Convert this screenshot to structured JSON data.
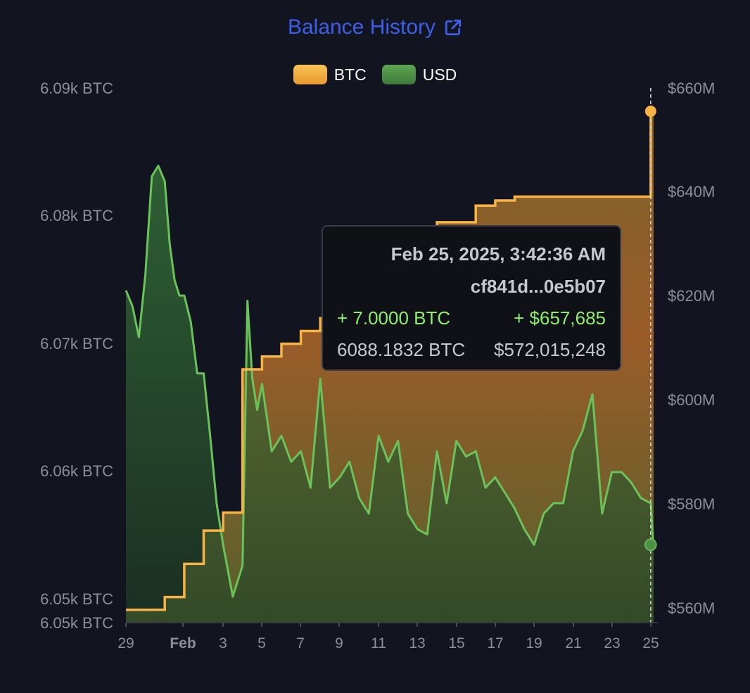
{
  "title": "Balance History",
  "legend": [
    {
      "label": "BTC",
      "color": "#f7b444"
    },
    {
      "label": "USD",
      "color": "#4e8f47"
    }
  ],
  "colors": {
    "btc_line": "#f7b444",
    "usd_line": "#6cc25a",
    "background": "#12151f"
  },
  "tooltip": {
    "date": "Feb 25, 2025, 3:42:36 AM",
    "hash": "cf841d...0e5b07",
    "delta_btc": "+ 7.0000 BTC",
    "delta_usd": "+ $657,685",
    "balance_btc": "6088.1832 BTC",
    "balance_usd": "$572,015,248"
  },
  "chart_data": {
    "type": "area",
    "title": "Balance History",
    "x_ticks": [
      "29",
      "Feb",
      "3",
      "5",
      "7",
      "9",
      "11",
      "13",
      "15",
      "17",
      "19",
      "21",
      "23",
      "25"
    ],
    "y_left_ticks": [
      "6.09k BTC",
      "6.08k BTC",
      "6.07k BTC",
      "6.06k BTC",
      "6.05k BTC",
      "6.05k BTC"
    ],
    "y_right_ticks": [
      "$660M",
      "$640M",
      "$620M",
      "$600M",
      "$580M",
      "$560M"
    ],
    "y_left_range": [
      6048.2,
      6090
    ],
    "y_right_range": [
      557,
      660
    ],
    "series": [
      {
        "name": "BTC",
        "axis": "left",
        "step": true,
        "x": [
          "2025-01-29",
          "2025-01-31",
          "2025-02-01",
          "2025-02-01",
          "2025-02-01",
          "2025-02-02",
          "2025-02-02",
          "2025-02-02",
          "2025-02-03",
          "2025-02-03",
          "2025-02-04",
          "2025-02-04",
          "2025-02-04",
          "2025-02-05",
          "2025-02-06",
          "2025-02-07",
          "2025-02-08",
          "2025-02-09",
          "2025-02-10",
          "2025-02-12",
          "2025-02-14",
          "2025-02-16",
          "2025-02-17",
          "2025-02-18",
          "2025-02-25",
          "2025-02-25"
        ],
        "y": [
          6049.2,
          6050.2,
          6051.1,
          6052.0,
          6052.8,
          6053.7,
          6054.5,
          6055.4,
          6056.0,
          6056.8,
          6057.5,
          6067.0,
          6068.0,
          6069.0,
          6070.0,
          6071.0,
          6072.0,
          6073.5,
          6075.0,
          6077.0,
          6079.5,
          6080.8,
          6081.2,
          6081.5,
          6088.18,
          6088.18
        ]
      },
      {
        "name": "USD",
        "axis": "right",
        "x": [
          "2025-01-29",
          "2025-01-29",
          "2025-01-29",
          "2025-01-30",
          "2025-01-30",
          "2025-01-30",
          "2025-01-31",
          "2025-01-31",
          "2025-01-31",
          "2025-01-31",
          "2025-02-01",
          "2025-02-01",
          "2025-02-01",
          "2025-02-02",
          "2025-02-02",
          "2025-02-02",
          "2025-02-03",
          "2025-02-03",
          "2025-02-04",
          "2025-02-04",
          "2025-02-04",
          "2025-02-04",
          "2025-02-05",
          "2025-02-05",
          "2025-02-06",
          "2025-02-06",
          "2025-02-07",
          "2025-02-07",
          "2025-02-08",
          "2025-02-08",
          "2025-02-09",
          "2025-02-09",
          "2025-02-10",
          "2025-02-10",
          "2025-02-11",
          "2025-02-11",
          "2025-02-12",
          "2025-02-12",
          "2025-02-13",
          "2025-02-13",
          "2025-02-14",
          "2025-02-14",
          "2025-02-15",
          "2025-02-15",
          "2025-02-16",
          "2025-02-16",
          "2025-02-17",
          "2025-02-17",
          "2025-02-18",
          "2025-02-18",
          "2025-02-19",
          "2025-02-19",
          "2025-02-20",
          "2025-02-20",
          "2025-02-21",
          "2025-02-21",
          "2025-02-22",
          "2025-02-22",
          "2025-02-23",
          "2025-02-23",
          "2025-02-24",
          "2025-02-24",
          "2025-02-25",
          "2025-02-25"
        ],
        "y": [
          621,
          618,
          612,
          624,
          643,
          645,
          642,
          630,
          623,
          620,
          620,
          615,
          605,
          605,
          593,
          580,
          572,
          562,
          568,
          619,
          604,
          598,
          603,
          590,
          593,
          588,
          590,
          583,
          604,
          583,
          585,
          588,
          581,
          578,
          593,
          588,
          592,
          578,
          575,
          574,
          590,
          580,
          592,
          589,
          590,
          583,
          585,
          582,
          579,
          575,
          572,
          578,
          580,
          580,
          590,
          594,
          601,
          578,
          586,
          586,
          584,
          581,
          580,
          571
        ]
      }
    ],
    "hover_marker": {
      "x": "2025-02-25",
      "btc": 6088.18,
      "usd": 572.0
    }
  }
}
